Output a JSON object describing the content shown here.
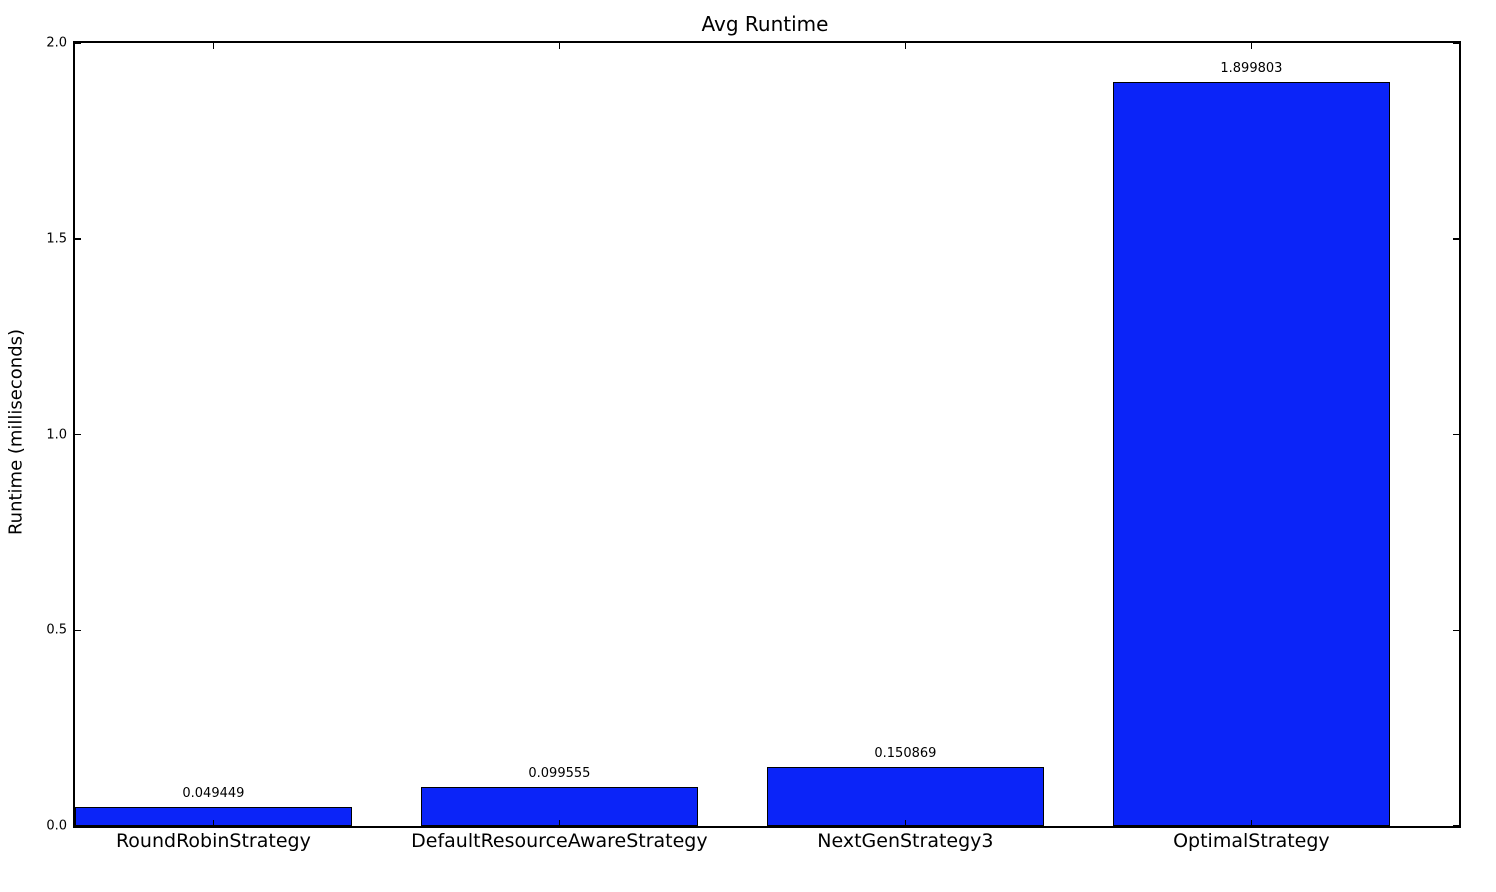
{
  "figure": {
    "background_color": "#ffffff",
    "text_color": "#000000"
  },
  "chart_data": {
    "type": "bar",
    "title": "Avg Runtime",
    "xlabel": "",
    "ylabel": "Runtime (milliseconds)",
    "categories": [
      "RoundRobinStrategy",
      "DefaultResourceAwareStrategy",
      "NextGenStrategy3",
      "OptimalStrategy"
    ],
    "values": [
      0.049449,
      0.099555,
      0.150869,
      1.899803
    ],
    "value_labels": [
      "0.049449",
      "0.099555",
      "0.150869",
      "1.899803"
    ],
    "ylim": [
      0.0,
      2.0
    ],
    "yticks": [
      0.0,
      0.5,
      1.0,
      1.5,
      2.0
    ],
    "ytick_labels": [
      "0.0",
      "0.5",
      "1.0",
      "1.5",
      "2.0"
    ],
    "bar_color": "#0b24f8",
    "bar_edge_color": "#000000",
    "grid": false,
    "legend": "none",
    "tick_direction": "in"
  }
}
